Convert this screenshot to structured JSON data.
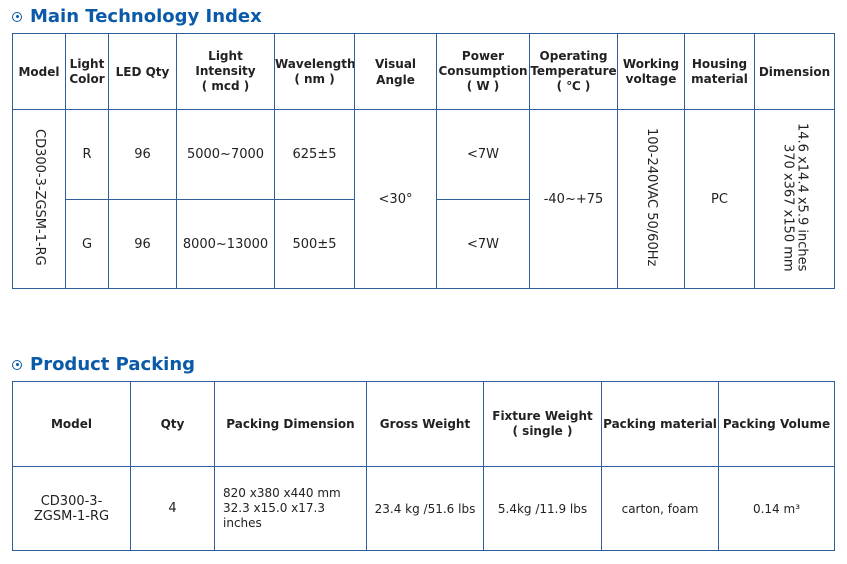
{
  "tech": {
    "title": "Main Technology Index",
    "headers": {
      "model": "Model",
      "light_color": [
        "Light",
        "Color"
      ],
      "led_qty": "LED Qty",
      "intensity": [
        "Light Intensity",
        "( mcd )"
      ],
      "wavelength": [
        "Wavelength",
        "( nm )"
      ],
      "visual_angle": "Visual Angle",
      "power": [
        "Power",
        "Consumption",
        "( W )"
      ],
      "temp": [
        "Operating",
        "Temperature",
        "( ℃ )"
      ],
      "voltage": [
        "Working",
        "voltage"
      ],
      "housing": [
        "Housing",
        "material"
      ],
      "dimension": "Dimension"
    },
    "model": "CD300-3-ZGSM-1-RG",
    "rows": [
      {
        "color": "R",
        "qty": "96",
        "intensity": "5000~7000",
        "wavelength": "625±5",
        "power": "<7W"
      },
      {
        "color": "G",
        "qty": "96",
        "intensity": "8000~13000",
        "wavelength": "500±5",
        "power": "<7W"
      }
    ],
    "visual_angle": "<30°",
    "temperature": "-40~+75",
    "voltage": "100-240VAC 50/60Hz",
    "housing": "PC",
    "dimension": [
      "370 x367 x150 mm",
      "14.6 x14.4 x5.9 inches"
    ]
  },
  "packing": {
    "title": "Product Packing",
    "headers": {
      "model": "Model",
      "qty": "Qty",
      "dimension": "Packing Dimension",
      "gross": "Gross Weight",
      "fixture": [
        "Fixture Weight",
        "( single )"
      ],
      "material": "Packing material",
      "volume": "Packing Volume"
    },
    "row": {
      "model": [
        "CD300-3-",
        "ZGSM-1-RG"
      ],
      "qty": "4",
      "dimension": [
        "820 x380 x440 mm",
        "32.3 x15.0 x17.3 inches"
      ],
      "gross": "23.4 kg /51.6 lbs",
      "fixture": "5.4kg /11.9 lbs",
      "material": "carton, foam",
      "volume": "0.14 m³"
    }
  }
}
